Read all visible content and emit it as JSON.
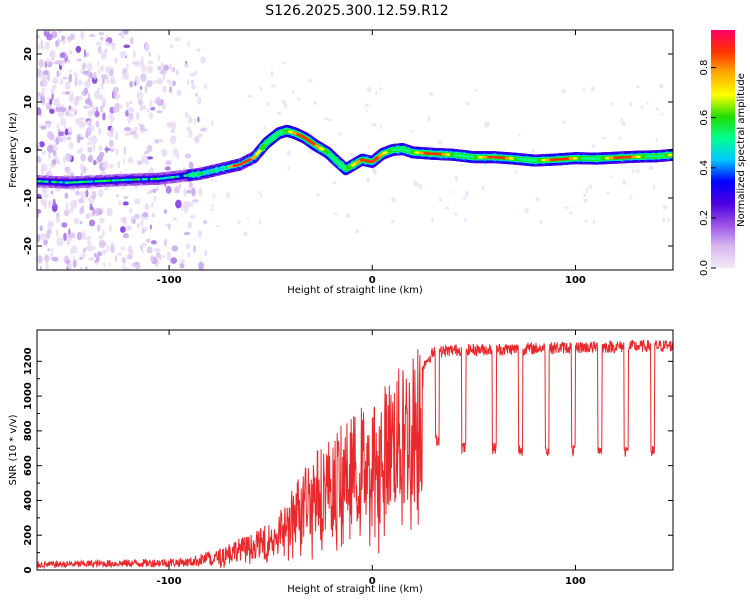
{
  "title": "S126.2025.300.12.59.R12",
  "chart_data": [
    {
      "type": "heatmap",
      "xlabel": "Height of straight line (km)",
      "ylabel": "Frequency (Hz)",
      "xlim": [
        -165,
        148
      ],
      "ylim": [
        -25,
        25
      ],
      "x_ticks": [
        {
          "value": -100,
          "label": "-100"
        },
        {
          "value": 0,
          "label": "0"
        },
        {
          "value": 100,
          "label": "100"
        }
      ],
      "y_ticks": [
        {
          "value": 20,
          "label": "20"
        },
        {
          "value": 10,
          "label": "10"
        },
        {
          "value": 0,
          "label": "0"
        },
        {
          "value": -10,
          "label": "-10"
        },
        {
          "value": -20,
          "label": "-20"
        }
      ],
      "ridge_x": [
        -165,
        -150,
        -135,
        -120,
        -105,
        -95,
        -85,
        -75,
        -65,
        -58,
        -52,
        -46,
        -42,
        -38,
        -33,
        -28,
        -22,
        -17,
        -13,
        -9,
        -5,
        0,
        5,
        10,
        15,
        20,
        30,
        40,
        50,
        60,
        70,
        80,
        90,
        100,
        110,
        120,
        130,
        140,
        148
      ],
      "ridge_y": [
        -6.5,
        -6.8,
        -6.5,
        -6.2,
        -6.0,
        -5.5,
        -5.0,
        -4.0,
        -3.0,
        -1.5,
        1.5,
        3.5,
        4.0,
        3.5,
        2.5,
        1.0,
        -0.5,
        -2.5,
        -4.0,
        -3.0,
        -2.0,
        -2.5,
        -0.8,
        0.0,
        0.2,
        -0.5,
        -0.8,
        -1.0,
        -1.5,
        -1.5,
        -1.8,
        -2.2,
        -2.0,
        -1.7,
        -1.8,
        -1.6,
        -1.4,
        -1.3,
        -1.0
      ],
      "colorbar": {
        "label": "Normalized spectral amplitude",
        "range": [
          0,
          0.95
        ],
        "ticks": [
          {
            "value": 0.0,
            "label": "0.0"
          },
          {
            "value": 0.2,
            "label": "0.2"
          },
          {
            "value": 0.4,
            "label": "0.4"
          },
          {
            "value": 0.6,
            "label": "0.6"
          },
          {
            "value": 0.8,
            "label": "0.8"
          }
        ],
        "colors": [
          "#f4e9f8",
          "#d7b8f0",
          "#9b4fe6",
          "#4a00e0",
          "#0000ff",
          "#00c8ff",
          "#00ff90",
          "#22dd00",
          "#ffff00",
          "#ffaa00",
          "#ff3300",
          "#ff0066"
        ]
      }
    },
    {
      "type": "line",
      "xlabel": "Height of straight line (km)",
      "ylabel": "SNR (10 * v/v)",
      "xlim": [
        -165,
        148
      ],
      "ylim": [
        0,
        1380
      ],
      "color": "#e8282a",
      "x_ticks": [
        {
          "value": -100,
          "label": "-100"
        },
        {
          "value": 0,
          "label": "0"
        },
        {
          "value": 100,
          "label": "100"
        }
      ],
      "y_ticks": [
        {
          "value": 0,
          "label": "0"
        },
        {
          "value": 200,
          "label": "200"
        },
        {
          "value": 400,
          "label": "400"
        },
        {
          "value": 600,
          "label": "600"
        },
        {
          "value": 800,
          "label": "800"
        },
        {
          "value": 1000,
          "label": "1000"
        },
        {
          "value": 1200,
          "label": "1200"
        }
      ],
      "envelope": [
        [
          -165,
          30
        ],
        [
          -140,
          35
        ],
        [
          -110,
          40
        ],
        [
          -90,
          45
        ],
        [
          -80,
          70
        ],
        [
          -70,
          140
        ],
        [
          -60,
          170
        ],
        [
          -50,
          230
        ],
        [
          -42,
          330
        ],
        [
          -37,
          450
        ],
        [
          -30,
          560
        ],
        [
          -20,
          650
        ],
        [
          -10,
          740
        ],
        [
          -5,
          800
        ],
        [
          0,
          830
        ],
        [
          5,
          880
        ],
        [
          10,
          950
        ],
        [
          15,
          990
        ],
        [
          20,
          1050
        ],
        [
          25,
          1180
        ],
        [
          30,
          1250
        ],
        [
          40,
          1265
        ],
        [
          60,
          1268
        ],
        [
          100,
          1280
        ],
        [
          148,
          1290
        ]
      ],
      "dropouts": [
        {
          "start": 31,
          "end": 33,
          "level": 750
        },
        {
          "start": 44,
          "end": 46,
          "level": 700
        },
        {
          "start": 59,
          "end": 61,
          "level": 700
        },
        {
          "start": 72,
          "end": 74,
          "level": 690
        },
        {
          "start": 85,
          "end": 87,
          "level": 690
        },
        {
          "start": 98,
          "end": 100,
          "level": 690
        },
        {
          "start": 111,
          "end": 113,
          "level": 690
        },
        {
          "start": 124,
          "end": 126,
          "level": 685
        },
        {
          "start": 137,
          "end": 139,
          "level": 680
        }
      ]
    }
  ]
}
